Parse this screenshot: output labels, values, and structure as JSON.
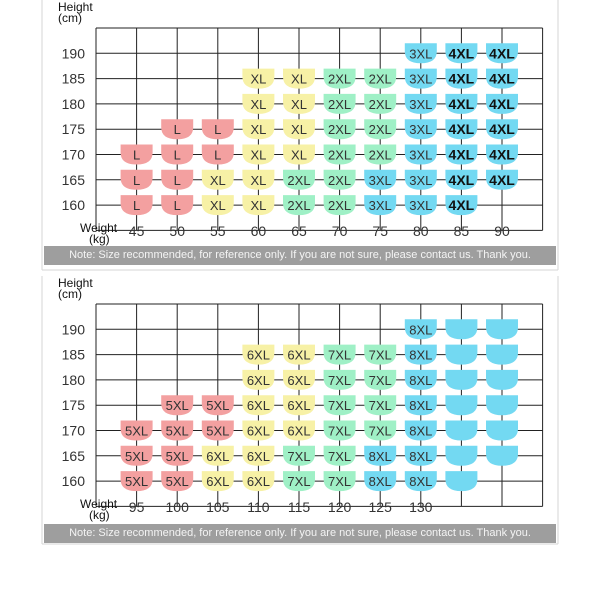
{
  "colors": {
    "red": "#f3a0a0",
    "yellow": "#f7f1a6",
    "green": "#9ff0c6",
    "blue": "#73d9f2",
    "grid": "#222222",
    "frame": "#d6d6d6",
    "note_bg": "#9e9e9e"
  },
  "chart_data": [
    {
      "type": "table",
      "y_axis_label": [
        "Height",
        "(cm)"
      ],
      "x_axis_label": [
        "Weight",
        "(kg)"
      ],
      "heights": [
        "190",
        "185",
        "180",
        "175",
        "170",
        "165",
        "160"
      ],
      "weights": [
        "45",
        "50",
        "55",
        "60",
        "65",
        "70",
        "75",
        "80",
        "85",
        "90"
      ],
      "grid": [
        [
          "",
          "",
          "",
          "",
          "",
          "",
          "",
          "3XL",
          "4XL",
          "4XL"
        ],
        [
          "",
          "",
          "",
          "XL",
          "XL",
          "2XL",
          "2XL",
          "3XL",
          "4XL",
          "4XL"
        ],
        [
          "",
          "",
          "",
          "XL",
          "XL",
          "2XL",
          "2XL",
          "3XL",
          "4XL",
          "4XL"
        ],
        [
          "",
          "L",
          "L",
          "XL",
          "XL",
          "2XL",
          "2XL",
          "3XL",
          "4XL",
          "4XL"
        ],
        [
          "L",
          "L",
          "L",
          "XL",
          "XL",
          "2XL",
          "2XL",
          "3XL",
          "4XL",
          "4XL"
        ],
        [
          "L",
          "L",
          "XL",
          "XL",
          "2XL",
          "2XL",
          "3XL",
          "3XL",
          "4XL",
          "4XL"
        ],
        [
          "L",
          "L",
          "XL",
          "XL",
          "2XL",
          "2XL",
          "3XL",
          "3XL",
          "4XL",
          ""
        ]
      ],
      "color_grid": [
        [
          "",
          "",
          "",
          "",
          "",
          "",
          "",
          "blue",
          "blue",
          "blue"
        ],
        [
          "",
          "",
          "",
          "yellow",
          "yellow",
          "green",
          "green",
          "blue",
          "blue",
          "blue"
        ],
        [
          "",
          "",
          "",
          "yellow",
          "yellow",
          "green",
          "green",
          "blue",
          "blue",
          "blue"
        ],
        [
          "",
          "red",
          "red",
          "yellow",
          "yellow",
          "green",
          "green",
          "blue",
          "blue",
          "blue"
        ],
        [
          "red",
          "red",
          "red",
          "yellow",
          "yellow",
          "green",
          "green",
          "blue",
          "blue",
          "blue"
        ],
        [
          "red",
          "red",
          "yellow",
          "yellow",
          "green",
          "green",
          "blue",
          "blue",
          "blue",
          "blue"
        ],
        [
          "red",
          "red",
          "yellow",
          "yellow",
          "green",
          "green",
          "blue",
          "blue",
          "blue",
          ""
        ]
      ],
      "note": "Note: Size recommended, for reference only. If you are not sure, please contact us. Thank you."
    },
    {
      "type": "table",
      "y_axis_label": [
        "Height",
        "(cm)"
      ],
      "x_axis_label": [
        "Weight",
        "(kg)"
      ],
      "heights": [
        "190",
        "185",
        "180",
        "175",
        "170",
        "165",
        "160"
      ],
      "weights": [
        "95",
        "100",
        "105",
        "110",
        "115",
        "120",
        "125",
        "130",
        "",
        ""
      ],
      "grid": [
        [
          "",
          "",
          "",
          "",
          "",
          "",
          "",
          "8XL",
          "",
          ""
        ],
        [
          "",
          "",
          "",
          "6XL",
          "6XL",
          "7XL",
          "7XL",
          "8XL",
          "",
          ""
        ],
        [
          "",
          "",
          "",
          "6XL",
          "6XL",
          "7XL",
          "7XL",
          "8XL",
          "",
          ""
        ],
        [
          "",
          "5XL",
          "5XL",
          "6XL",
          "6XL",
          "7XL",
          "7XL",
          "8XL",
          "",
          ""
        ],
        [
          "5XL",
          "5XL",
          "5XL",
          "6XL",
          "6XL",
          "7XL",
          "7XL",
          "8XL",
          "",
          ""
        ],
        [
          "5XL",
          "5XL",
          "6XL",
          "6XL",
          "7XL",
          "7XL",
          "8XL",
          "8XL",
          "",
          ""
        ],
        [
          "5XL",
          "5XL",
          "6XL",
          "6XL",
          "7XL",
          "7XL",
          "8XL",
          "8XL",
          "",
          ""
        ]
      ],
      "color_grid": [
        [
          "",
          "",
          "",
          "",
          "",
          "",
          "",
          "blue",
          "blue",
          "blue"
        ],
        [
          "",
          "",
          "",
          "yellow",
          "yellow",
          "green",
          "green",
          "blue",
          "blue",
          "blue"
        ],
        [
          "",
          "",
          "",
          "yellow",
          "yellow",
          "green",
          "green",
          "blue",
          "blue",
          "blue"
        ],
        [
          "",
          "red",
          "red",
          "yellow",
          "yellow",
          "green",
          "green",
          "blue",
          "blue",
          "blue"
        ],
        [
          "red",
          "red",
          "red",
          "yellow",
          "yellow",
          "green",
          "green",
          "blue",
          "blue",
          "blue"
        ],
        [
          "red",
          "red",
          "yellow",
          "yellow",
          "green",
          "green",
          "blue",
          "blue",
          "blue",
          "blue"
        ],
        [
          "red",
          "red",
          "yellow",
          "yellow",
          "green",
          "green",
          "blue",
          "blue",
          "blue",
          ""
        ]
      ],
      "note": "Note: Size recommended, for reference only. If you are not sure, please contact us. Thank you."
    }
  ]
}
